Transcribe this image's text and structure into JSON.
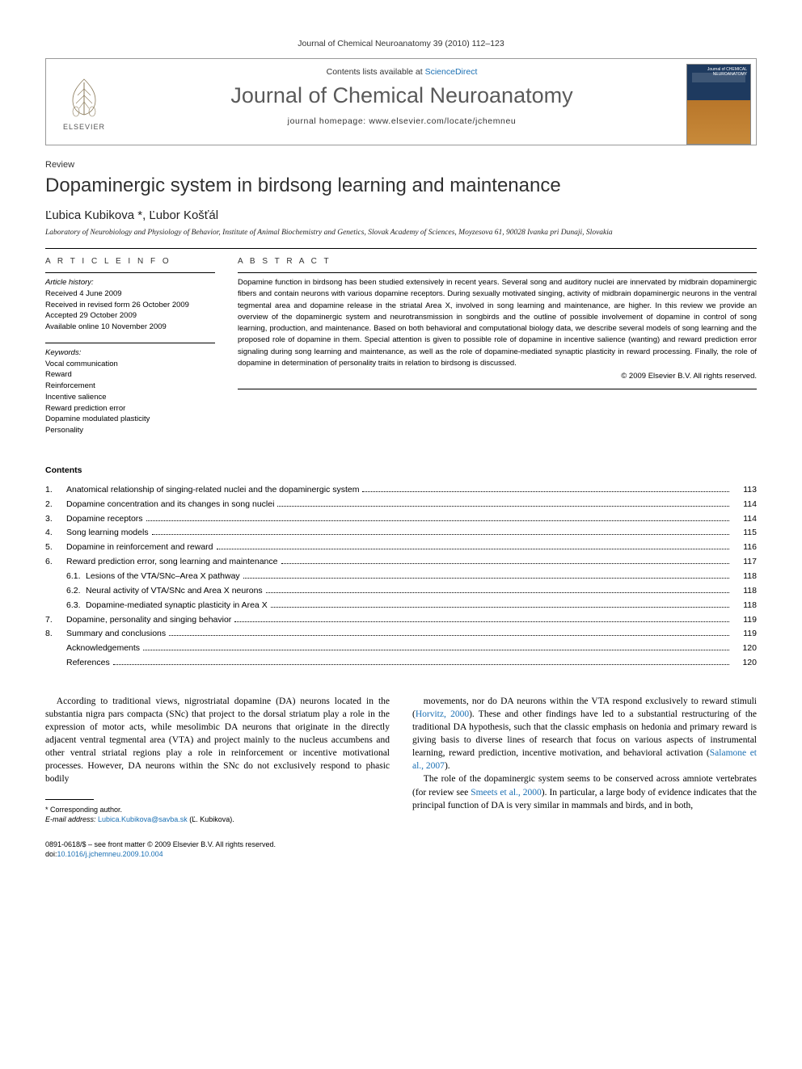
{
  "running_head": "Journal of Chemical Neuroanatomy 39 (2010) 112–123",
  "header": {
    "contents_prefix": "Contents lists available at ",
    "contents_link": "ScienceDirect",
    "journal_title": "Journal of Chemical Neuroanatomy",
    "homepage": "journal homepage: www.elsevier.com/locate/jchemneu",
    "publisher": "ELSEVIER",
    "cover_text": "Journal of CHEMICAL NEUROANATOMY"
  },
  "article": {
    "type": "Review",
    "title": "Dopaminergic system in birdsong learning and maintenance",
    "authors": "Ľubica Kubikova *, Ľubor Košťál",
    "affiliation": "Laboratory of Neurobiology and Physiology of Behavior, Institute of Animal Biochemistry and Genetics, Slovak Academy of Sciences, Moyzesova 61, 90028 Ivanka pri Dunaji, Slovakia"
  },
  "info": {
    "heading": "A R T I C L E   I N F O",
    "history_title": "Article history:",
    "history": [
      "Received 4 June 2009",
      "Received in revised form 26 October 2009",
      "Accepted 29 October 2009",
      "Available online 10 November 2009"
    ],
    "keywords_title": "Keywords:",
    "keywords": [
      "Vocal communication",
      "Reward",
      "Reinforcement",
      "Incentive salience",
      "Reward prediction error",
      "Dopamine modulated plasticity",
      "Personality"
    ]
  },
  "abstract": {
    "heading": "A B S T R A C T",
    "body": "Dopamine function in birdsong has been studied extensively in recent years. Several song and auditory nuclei are innervated by midbrain dopaminergic fibers and contain neurons with various dopamine receptors. During sexually motivated singing, activity of midbrain dopaminergic neurons in the ventral tegmental area and dopamine release in the striatal Area X, involved in song learning and maintenance, are higher. In this review we provide an overview of the dopaminergic system and neurotransmission in songbirds and the outline of possible involvement of dopamine in control of song learning, production, and maintenance. Based on both behavioral and computational biology data, we describe several models of song learning and the proposed role of dopamine in them. Special attention is given to possible role of dopamine in incentive salience (wanting) and reward prediction error signaling during song learning and maintenance, as well as the role of dopamine-mediated synaptic plasticity in reward processing. Finally, the role of dopamine in determination of personality traits in relation to birdsong is discussed.",
    "copyright": "© 2009 Elsevier B.V. All rights reserved."
  },
  "contents": {
    "heading": "Contents",
    "items": [
      {
        "num": "1.",
        "label": "Anatomical relationship of singing-related nuclei and the dopaminergic system",
        "page": "113"
      },
      {
        "num": "2.",
        "label": "Dopamine concentration and its changes in song nuclei",
        "page": "114"
      },
      {
        "num": "3.",
        "label": "Dopamine receptors",
        "page": "114"
      },
      {
        "num": "4.",
        "label": "Song learning models",
        "page": "115"
      },
      {
        "num": "5.",
        "label": "Dopamine in reinforcement and reward",
        "page": "116"
      },
      {
        "num": "6.",
        "label": "Reward prediction error, song learning and maintenance",
        "page": "117"
      },
      {
        "num": "6.1.",
        "label": "Lesions of the VTA/SNc–Area X pathway",
        "page": "118",
        "sub": true
      },
      {
        "num": "6.2.",
        "label": "Neural activity of VTA/SNc and Area X neurons",
        "page": "118",
        "sub": true
      },
      {
        "num": "6.3.",
        "label": "Dopamine-mediated synaptic plasticity in Area X",
        "page": "118",
        "sub": true
      },
      {
        "num": "7.",
        "label": "Dopamine, personality and singing behavior",
        "page": "119"
      },
      {
        "num": "8.",
        "label": "Summary and conclusions",
        "page": "119"
      },
      {
        "num": "",
        "label": "Acknowledgements",
        "page": "120",
        "nonum": true
      },
      {
        "num": "",
        "label": "References",
        "page": "120",
        "nonum": true
      }
    ]
  },
  "body": {
    "col1": "According to traditional views, nigrostriatal dopamine (DA) neurons located in the substantia nigra pars compacta (SNc) that project to the dorsal striatum play a role in the expression of motor acts, while mesolimbic DA neurons that originate in the directly adjacent ventral tegmental area (VTA) and project mainly to the nucleus accumbens and other ventral striatal regions play a role in reinforcement or incentive motivational processes. However, DA neurons within the SNc do not exclusively respond to phasic bodily",
    "col2a": "movements, nor do DA neurons within the VTA respond exclusively to reward stimuli (",
    "col2a_link": "Horvitz, 2000",
    "col2b": "). These and other findings have led to a substantial restructuring of the traditional DA hypothesis, such that the classic emphasis on hedonia and primary reward is giving basis to diverse lines of research that focus on various aspects of instrumental learning, reward prediction, incentive motivation, and behavioral activation (",
    "col2b_link": "Salamone et al., 2007",
    "col2c": ").",
    "col2d": "The role of the dopaminergic system seems to be conserved across amniote vertebrates (for review see ",
    "col2d_link": "Smeets et al., 2000",
    "col2e": "). In particular, a large body of evidence indicates that the principal function of DA is very similar in mammals and birds, and in both,"
  },
  "footnotes": {
    "corr": "* Corresponding author.",
    "email_label": "E-mail address: ",
    "email": "Lubica.Kubikova@savba.sk",
    "email_suffix": " (Ľ. Kubikova)."
  },
  "footer": {
    "issn": "0891-0618/$ – see front matter © 2009 Elsevier B.V. All rights reserved.",
    "doi_prefix": "doi:",
    "doi": "10.1016/j.jchemneu.2009.10.004"
  }
}
